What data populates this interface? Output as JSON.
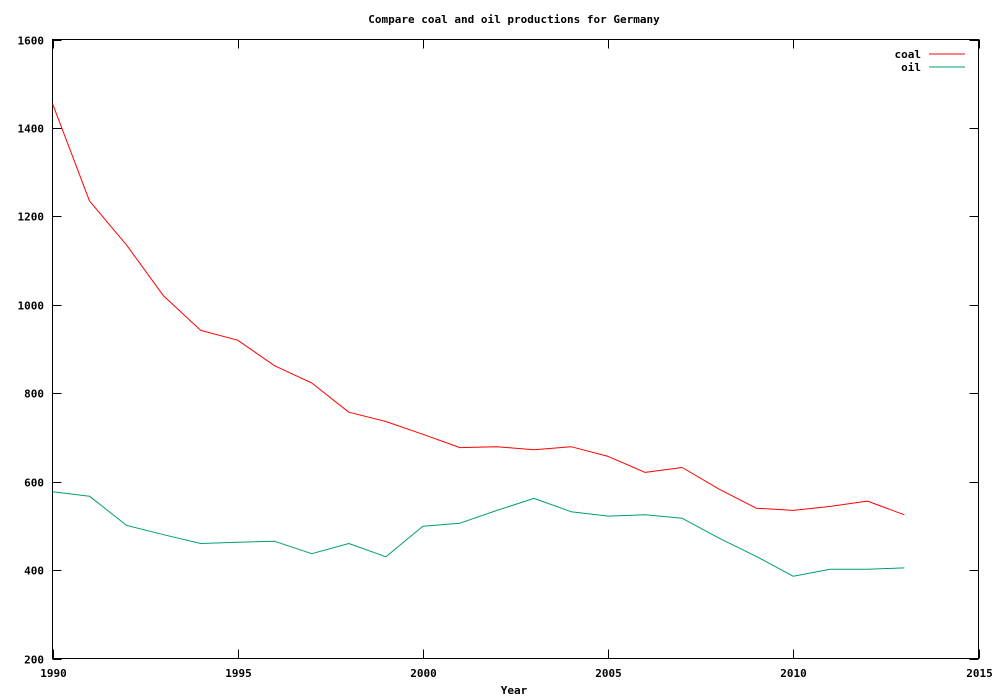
{
  "chart_data": {
    "type": "line",
    "title": "Compare coal and oil productions for Germany",
    "xlabel": "Year",
    "ylabel": "",
    "xlim": [
      1990,
      2015
    ],
    "ylim": [
      200,
      1600
    ],
    "xticks": [
      1990,
      1995,
      2000,
      2005,
      2010,
      2015
    ],
    "yticks": [
      200,
      400,
      600,
      800,
      1000,
      1200,
      1400,
      1600
    ],
    "grid": false,
    "legend_position": "top-right",
    "x": [
      1990,
      1991,
      1992,
      1993,
      1994,
      1995,
      1996,
      1997,
      1998,
      1999,
      2000,
      2001,
      2002,
      2003,
      2004,
      2005,
      2006,
      2007,
      2008,
      2009,
      2010,
      2011,
      2012,
      2013
    ],
    "series": [
      {
        "name": "coal",
        "color": "#ff0000",
        "values": [
          1455,
          1235,
          1135,
          1020,
          942,
          920,
          862,
          823,
          757,
          736,
          707,
          677,
          679,
          672,
          679,
          657,
          621,
          632,
          583,
          540,
          535,
          544,
          556,
          525
        ]
      },
      {
        "name": "oil",
        "color": "#009e73",
        "values": [
          577,
          567,
          501,
          480,
          460,
          463,
          465,
          437,
          460,
          430,
          499,
          506,
          535,
          562,
          532,
          522,
          525,
          517,
          472,
          431,
          386,
          402,
          402,
          405
        ]
      }
    ]
  }
}
